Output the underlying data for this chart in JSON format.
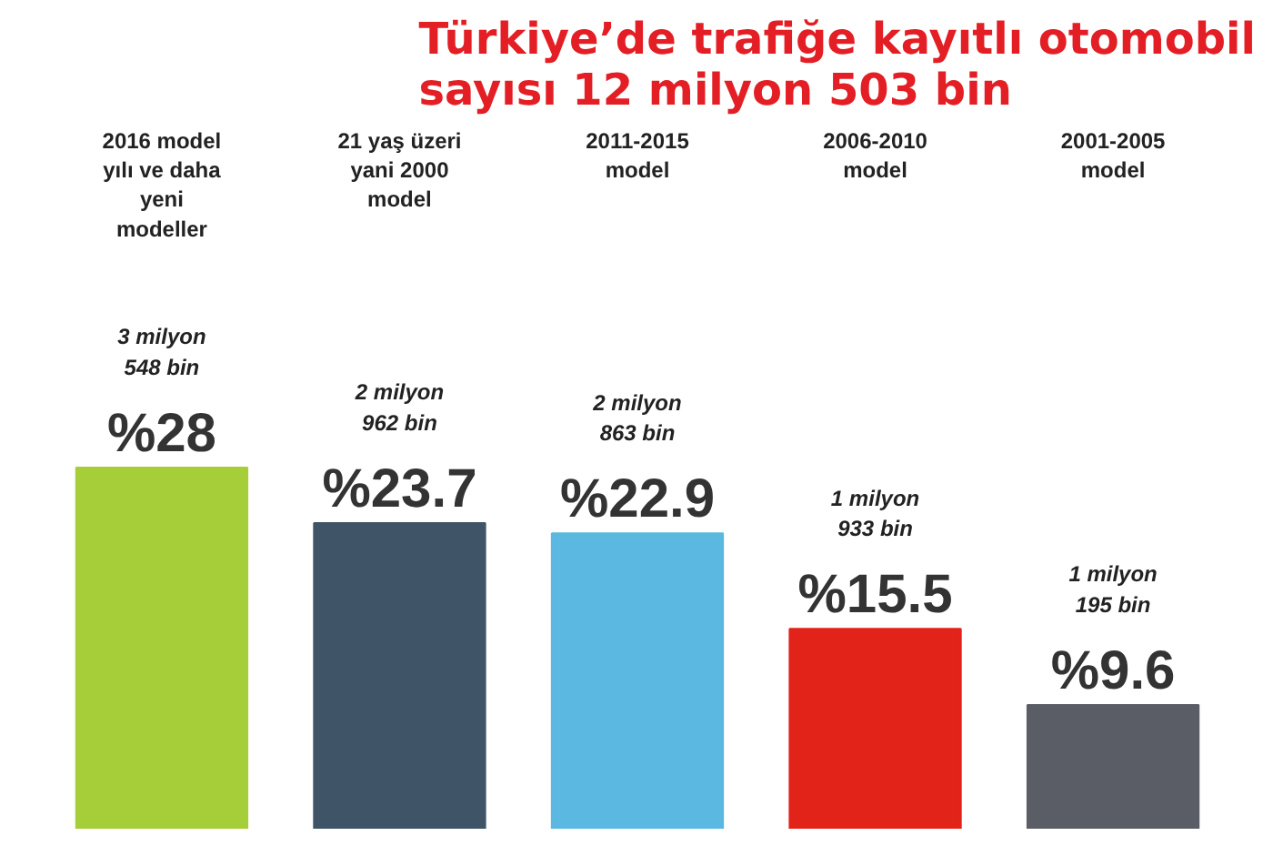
{
  "chart_data": {
    "type": "bar",
    "title": "Türkiye’de trafiğe kayıtlı otomobil sayısı 12 milyon 503 bin",
    "categories": [
      "2016 model yılı ve daha yeni modeller",
      "21 yaş üzeri yani 2000 model",
      "2011-2015 model",
      "2006-2010 model",
      "2001-2005 model"
    ],
    "values": [
      28,
      23.7,
      22.9,
      15.5,
      9.6
    ],
    "colors": [
      "#a6ce39",
      "#3f5567",
      "#5bb8e0",
      "#e2231a",
      "#5a5d66"
    ],
    "value_labels": [
      "%28",
      "%23.7",
      "%22.9",
      "%15.5",
      "%9.6"
    ],
    "annotations": [
      "3 milyon 548 bin",
      "2 milyon 962 bin",
      "2 milyon 863 bin",
      "1 milyon 933 bin",
      "1 milyon 195 bin"
    ],
    "grid": false
  }
}
